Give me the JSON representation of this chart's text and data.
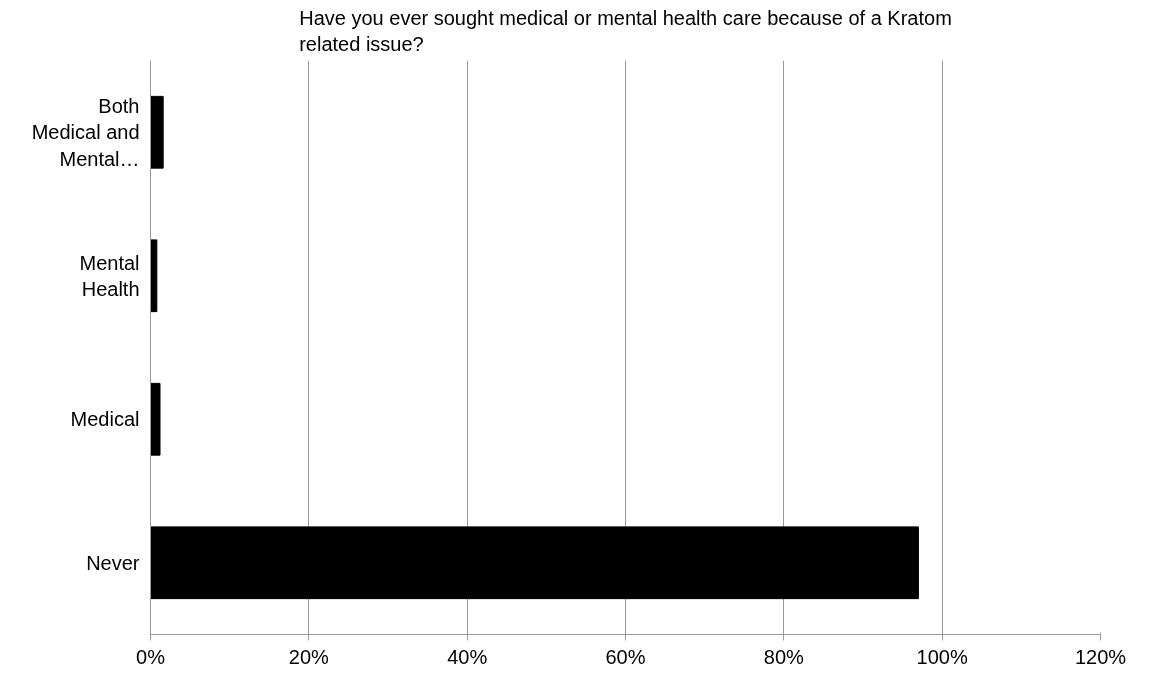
{
  "chart_data": {
    "type": "bar",
    "orientation": "horizontal",
    "title": "Have you ever sought medical or mental health care because of a Kratom related issue?",
    "categories": [
      "Both Medical and Mental…",
      "Mental Health",
      "Medical",
      "Never"
    ],
    "values": [
      1.6,
      0.8,
      1.2,
      97.0
    ],
    "color": "#000000",
    "xlim": [
      0,
      120
    ],
    "xticks": [
      {
        "value": 0,
        "label": "0%"
      },
      {
        "value": 20,
        "label": "20%"
      },
      {
        "value": 40,
        "label": "40%"
      },
      {
        "value": 60,
        "label": "60%"
      },
      {
        "value": 80,
        "label": "80%"
      },
      {
        "value": 100,
        "label": "100%"
      },
      {
        "value": 120,
        "label": "120%"
      }
    ],
    "grid": "x"
  }
}
